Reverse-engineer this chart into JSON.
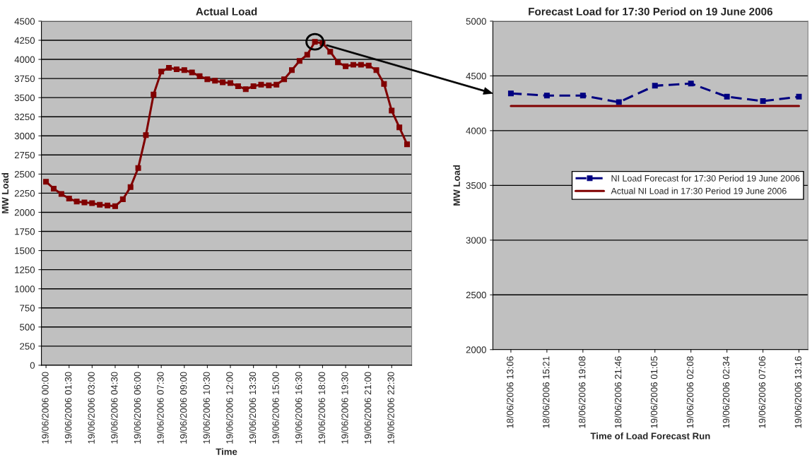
{
  "chart_data": [
    {
      "type": "line",
      "title": "Actual Load",
      "xlabel": "Time",
      "ylabel": "MW Load",
      "categories": [
        "19/06/2006 00:00",
        null,
        null,
        "19/06/2006 01:30",
        null,
        null,
        "19/06/2006 03:00",
        null,
        null,
        "19/06/2006 04:30",
        null,
        null,
        "19/06/2006 06:00",
        null,
        null,
        "19/06/2006 07:30",
        null,
        null,
        "19/06/2006 09:00",
        null,
        null,
        "19/06/2006 10:30",
        null,
        null,
        "19/06/2006 12:00",
        null,
        null,
        "19/06/2006 13:30",
        null,
        null,
        "19/06/2006 15:00",
        null,
        null,
        "19/06/2006 16:30",
        null,
        null,
        "19/06/2006 18:00",
        null,
        null,
        "19/06/2006 19:30",
        null,
        null,
        "19/06/2006 21:00",
        null,
        null,
        "19/06/2006 22:30",
        null,
        null
      ],
      "series": [
        {
          "color": "#800000",
          "values": [
            2400,
            2310,
            2240,
            2180,
            2140,
            2130,
            2120,
            2100,
            2090,
            2080,
            2170,
            2330,
            2580,
            3010,
            3540,
            3840,
            3890,
            3870,
            3860,
            3830,
            3780,
            3740,
            3720,
            3700,
            3690,
            3650,
            3610,
            3650,
            3670,
            3660,
            3670,
            3740,
            3860,
            3980,
            4060,
            4230,
            4210,
            4100,
            3960,
            3910,
            3930,
            3930,
            3920,
            3860,
            3680,
            3330,
            3110,
            2890
          ]
        }
      ],
      "marker": "square",
      "line_style": "solid",
      "ylim": [
        0,
        4500
      ],
      "yticks": [
        0,
        250,
        500,
        750,
        1000,
        1250,
        1500,
        1750,
        2000,
        2250,
        2500,
        2750,
        3000,
        3250,
        3500,
        3750,
        4000,
        4250,
        4500
      ],
      "grid": "y"
    },
    {
      "type": "line",
      "title": "Forecast Load for 17:30 Period on 19 June 2006",
      "xlabel": "Time of Load Forecast Run",
      "ylabel": "MW Load",
      "categories": [
        "18/06/2006 13:06",
        "18/06/2006 15:21",
        "18/06/2006 19:08",
        "18/06/2006 21:46",
        "19/06/2006 01:05",
        "19/06/2006 02:08",
        "19/06/2006 02:34",
        "19/06/2006 07:06",
        "19/06/2006 13:16"
      ],
      "series": [
        {
          "name": "NI Load Forecast for 17:30 Period 19 June 2006",
          "color": "#000080",
          "marker": "square",
          "line_style": "dashed",
          "values": [
            4340,
            4320,
            4320,
            4260,
            4410,
            4430,
            4310,
            4270,
            4310
          ]
        },
        {
          "name": "Actual NI Load in 17:30 Period 19 June 2006",
          "color": "#800000",
          "marker": "none",
          "line_style": "solid",
          "values": [
            4225,
            4225,
            4225,
            4225,
            4225,
            4225,
            4225,
            4225,
            4225
          ]
        }
      ],
      "ylim": [
        2000,
        5000
      ],
      "yticks": [
        2000,
        2500,
        3000,
        3500,
        4000,
        4500,
        5000
      ],
      "grid": "y",
      "legend": "center right"
    }
  ]
}
